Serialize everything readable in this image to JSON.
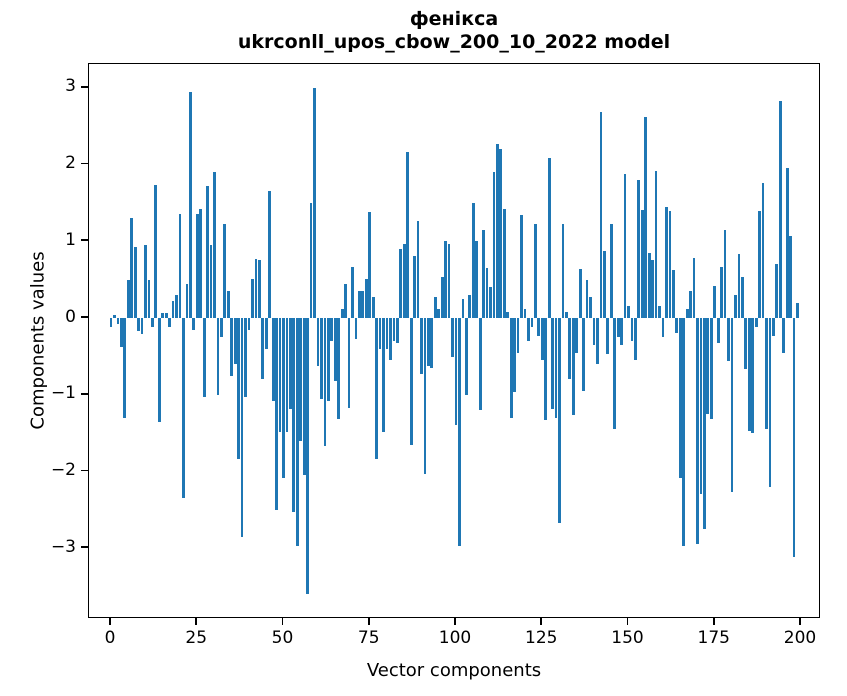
{
  "figure": {
    "background": "#ffffff"
  },
  "chart_data": {
    "type": "bar",
    "title": "фенікса",
    "subtitle": "ukrconll_upos_cbow_200_10_2022 model",
    "xlabel": "Vector components",
    "ylabel": "Components values",
    "bar_color": "#1f77b4",
    "axis_color": "#000000",
    "grid": false,
    "legend": "none",
    "n_components": 200,
    "x_tick_values": [
      0,
      25,
      50,
      75,
      100,
      125,
      150,
      175,
      200
    ],
    "x_tick_labels": [
      "0",
      "25",
      "50",
      "75",
      "100",
      "125",
      "150",
      "175",
      "200"
    ],
    "y_tick_values": [
      3,
      2,
      1,
      0,
      -1,
      -2,
      -3
    ],
    "y_tick_labels": [
      "3",
      "2",
      "1",
      "0",
      "−1",
      "−2",
      "−3"
    ],
    "ylim": [
      -3.9,
      3.3
    ],
    "values": [
      -0.12,
      0.04,
      -0.08,
      -0.38,
      -1.3,
      0.5,
      1.3,
      0.92,
      -0.17,
      -0.21,
      0.95,
      0.49,
      -0.12,
      1.74,
      -1.35,
      0.07,
      0.06,
      -0.12,
      0.22,
      0.3,
      1.36,
      -2.35,
      0.44,
      2.95,
      -0.15,
      1.35,
      1.42,
      -1.03,
      1.72,
      0.95,
      1.9,
      -1.01,
      -0.25,
      1.22,
      0.35,
      -0.75,
      -0.6,
      -1.84,
      -2.86,
      -1.03,
      -0.15,
      0.51,
      0.77,
      0.75,
      -0.8,
      -0.4,
      1.66,
      -1.08,
      -2.5,
      -1.49,
      -2.08,
      -1.49,
      -1.19,
      -2.53,
      -2.97,
      -1.6,
      -2.05,
      -3.6,
      1.5,
      3.0,
      -0.62,
      -1.05,
      -1.67,
      -1.08,
      -0.3,
      -0.82,
      -1.32,
      0.12,
      0.44,
      -1.17,
      0.66,
      -0.28,
      0.35,
      0.35,
      0.51,
      1.38,
      0.27,
      -1.84,
      -0.4,
      -1.48,
      -0.4,
      -0.55,
      -0.3,
      -0.33,
      0.9,
      0.97,
      2.16,
      -1.66,
      0.81,
      1.26,
      -0.73,
      -2.03,
      -0.62,
      -0.65,
      0.27,
      0.12,
      0.53,
      1.0,
      0.97,
      -0.51,
      -1.4,
      -2.97,
      0.25,
      -1.01,
      0.3,
      1.5,
      1.0,
      -1.2,
      1.15,
      0.65,
      0.4,
      1.9,
      2.27,
      2.2,
      1.42,
      0.08,
      -1.3,
      -0.97,
      -0.45,
      1.34,
      0.12,
      -0.3,
      -0.12,
      1.23,
      -0.23,
      -0.55,
      -1.33,
      2.08,
      -1.19,
      -1.3,
      -2.67,
      1.22,
      0.08,
      -0.8,
      -1.27,
      -0.45,
      0.64,
      -0.95,
      0.49,
      0.28,
      -0.35,
      -0.6,
      2.68,
      0.88,
      -0.47,
      1.23,
      -1.45,
      -0.25,
      -0.35,
      1.88,
      0.15,
      -0.3,
      -0.55,
      1.8,
      1.41,
      2.62,
      0.85,
      0.75,
      1.92,
      0.15,
      -0.25,
      1.45,
      1.4,
      0.63,
      -0.2,
      -2.08,
      -2.97,
      0.12,
      0.35,
      0.78,
      -2.95,
      -2.3,
      -2.75,
      -1.25,
      -1.32,
      0.42,
      -0.32,
      0.66,
      1.15,
      -0.56,
      -2.27,
      0.3,
      0.83,
      0.53,
      -0.67,
      -1.47,
      -1.5,
      -0.12,
      1.4,
      1.76,
      -1.45,
      -2.2,
      -0.23,
      0.7,
      2.83,
      -0.45,
      1.95,
      1.07,
      -3.12,
      0.2
    ]
  }
}
